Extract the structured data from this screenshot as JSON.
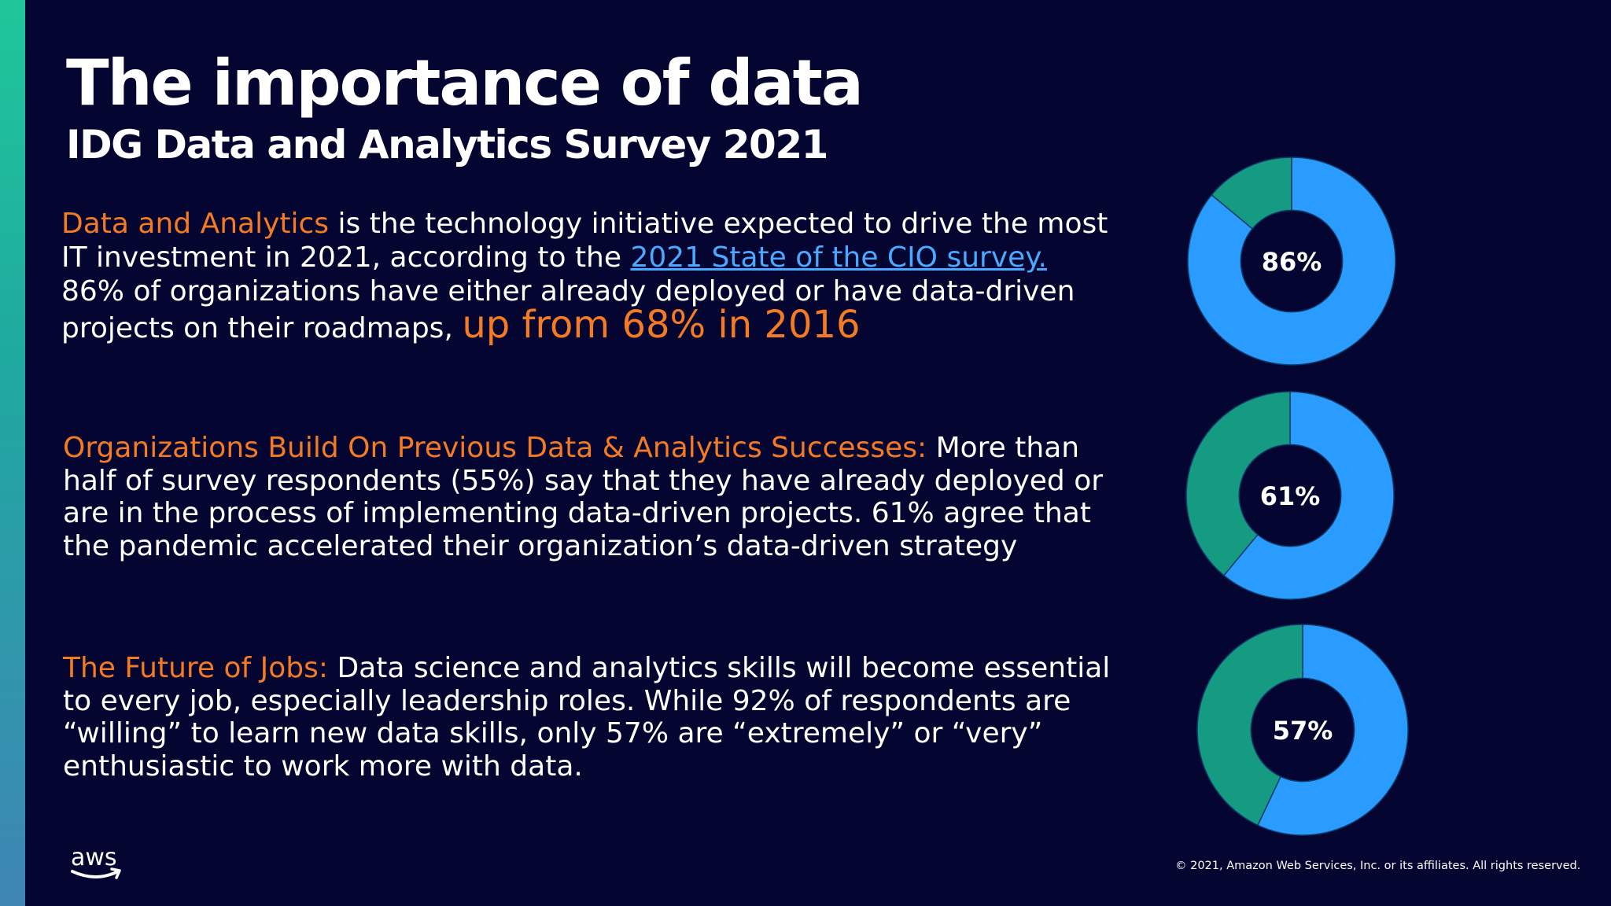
{
  "title": "The importance of data",
  "subtitle": "IDG Data and Analytics Survey 2021",
  "paragraphs": {
    "p1": {
      "highlight": "Data and Analytics",
      "text_a": " is the technology initiative expected to drive the most IT investment in 2021, according to the ",
      "link": "2021 State of the CIO survey. ",
      "text_b": "86% of organizations have either already deployed or have data-driven projects on their roadmaps, ",
      "highlight_big": "up from 68% in 2016"
    },
    "p2": {
      "highlight": "Organizations Build On Previous Data & Analytics Successes:",
      "text": " More than half of survey respondents (55%) say that they have already deployed or are in the process of implementing data-driven projects. 61% agree that the pandemic accelerated their organization’s data-driven strategy"
    },
    "p3": {
      "highlight": "The Future of Jobs:",
      "text": " Data science and analytics skills will become essential to every job, especially leadership roles. While 92% of respondents are “willing” to learn new data skills, only 57% are “extremely” or “very” enthusiastic to work more with data."
    }
  },
  "chart_data": [
    {
      "type": "pie",
      "values": [
        86,
        14
      ],
      "label": "86%",
      "colors": [
        "#2b9cff",
        "#159b82"
      ]
    },
    {
      "type": "pie",
      "values": [
        61,
        39
      ],
      "label": "61%",
      "colors": [
        "#2b9cff",
        "#159b82"
      ]
    },
    {
      "type": "pie",
      "values": [
        57,
        43
      ],
      "label": "57%",
      "colors": [
        "#2b9cff",
        "#159b82"
      ]
    }
  ],
  "logo": "aws",
  "copyright": "© 2021, Amazon Web Services, Inc. or its affiliates. All rights reserved."
}
